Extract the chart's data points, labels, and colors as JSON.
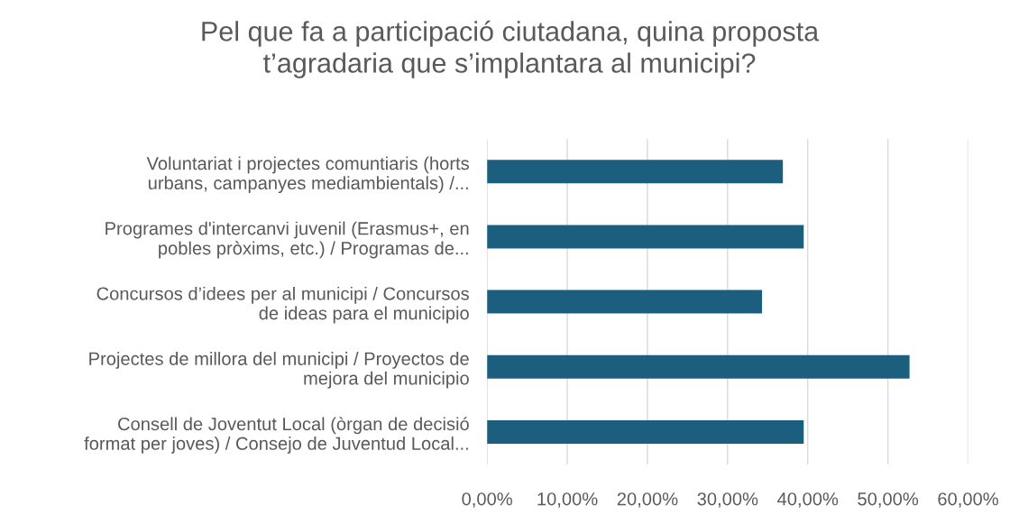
{
  "chart_data": {
    "type": "bar",
    "orientation": "horizontal",
    "title": "Pel que fa a participació ciutadana, quina proposta\nt’agradaria que s’implantara al municipi?",
    "categories": [
      "Voluntariat i projectes comuntiaris (horts\nurbans, campanyes mediambientals) /...",
      "Programes d'intercanvi juvenil (Erasmus+, en\npobles pròxims, etc.) / Programas de...",
      "Concursos d’idees per al municipi / Concursos\nde ideas para el municipio",
      "Projectes de millora del municipi / Proyectos de\nmejora del municipio",
      "Consell de Joventut Local (òrgan de decisió\nformat per joves) / Consejo de Juventud Local..."
    ],
    "values": [
      36.9,
      39.5,
      34.3,
      52.7,
      39.5
    ],
    "color": "#1b5e7e",
    "xlim": [
      0,
      60
    ],
    "xticks": [
      {
        "value": 0,
        "label": "0,00%"
      },
      {
        "value": 10,
        "label": "10,00%"
      },
      {
        "value": 20,
        "label": "20,00%"
      },
      {
        "value": 30,
        "label": "30,00%"
      },
      {
        "value": 40,
        "label": "40,00%"
      },
      {
        "value": 50,
        "label": "50,00%"
      },
      {
        "value": 60,
        "label": "60,00%"
      }
    ],
    "grid": "x",
    "legend": false
  }
}
